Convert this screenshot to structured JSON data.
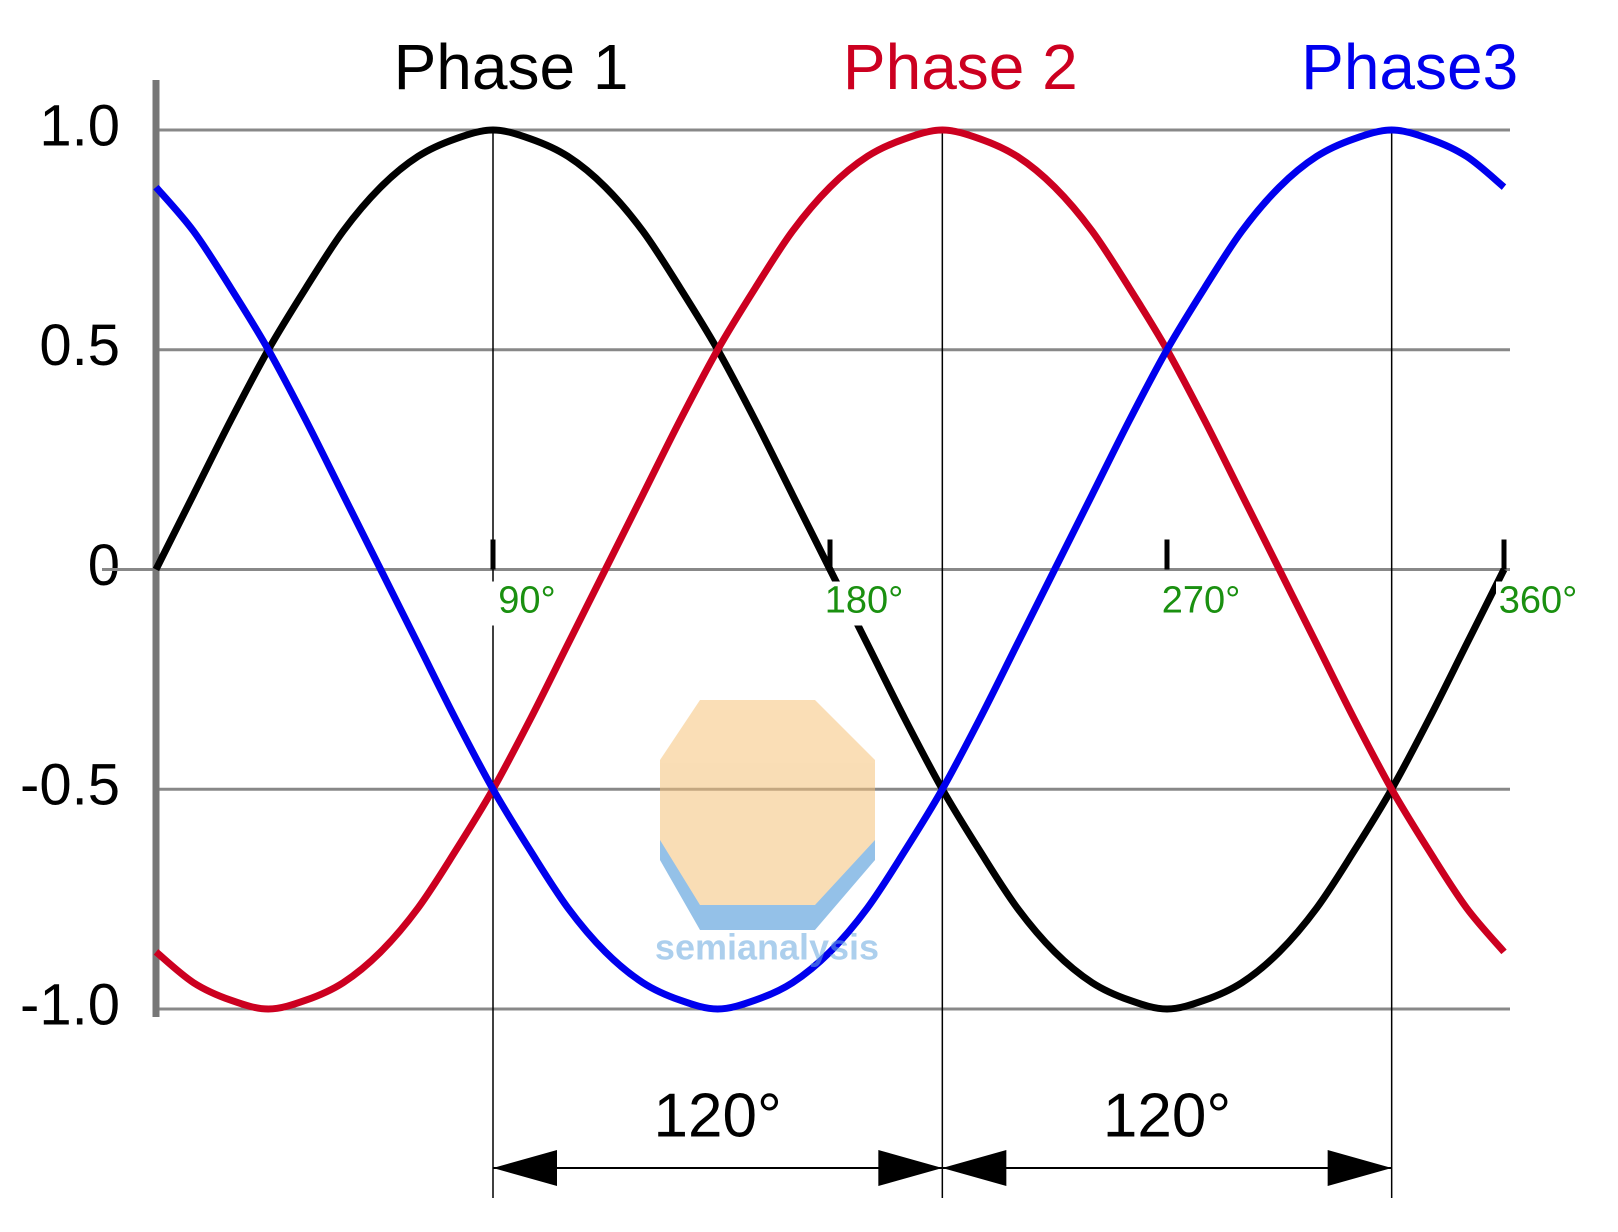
{
  "chart_data": {
    "type": "line",
    "x": [
      0,
      10,
      20,
      30,
      40,
      50,
      60,
      70,
      80,
      90,
      100,
      110,
      120,
      130,
      140,
      150,
      160,
      170,
      180,
      190,
      200,
      210,
      220,
      230,
      240,
      250,
      260,
      270,
      280,
      290,
      300,
      310,
      320,
      330,
      340,
      350,
      360
    ],
    "series": [
      {
        "name": "Phase 1",
        "color": "#000000",
        "values": [
          0,
          0.17,
          0.34,
          0.5,
          0.64,
          0.77,
          0.87,
          0.94,
          0.98,
          1,
          0.98,
          0.94,
          0.87,
          0.77,
          0.64,
          0.5,
          0.34,
          0.17,
          0,
          -0.17,
          -0.34,
          -0.5,
          -0.64,
          -0.77,
          -0.87,
          -0.94,
          -0.98,
          -1,
          -0.98,
          -0.94,
          -0.87,
          -0.77,
          -0.64,
          -0.5,
          -0.34,
          -0.17,
          0
        ]
      },
      {
        "name": "Phase 2",
        "color": "#cc0020",
        "values": [
          -0.87,
          -0.94,
          -0.98,
          -1,
          -0.98,
          -0.94,
          -0.87,
          -0.77,
          -0.64,
          -0.5,
          -0.34,
          -0.17,
          0,
          0.17,
          0.34,
          0.5,
          0.64,
          0.77,
          0.87,
          0.94,
          0.98,
          1,
          0.98,
          0.94,
          0.87,
          0.77,
          0.64,
          0.5,
          0.34,
          0.17,
          0,
          -0.17,
          -0.34,
          -0.5,
          -0.64,
          -0.77,
          -0.87
        ]
      },
      {
        "name": "Phase3",
        "color": "#0000ee",
        "values": [
          0.87,
          0.77,
          0.64,
          0.5,
          0.34,
          0.17,
          0,
          -0.17,
          -0.34,
          -0.5,
          -0.64,
          -0.77,
          -0.87,
          -0.94,
          -0.98,
          -1,
          -0.98,
          -0.94,
          -0.87,
          -0.77,
          -0.64,
          -0.5,
          -0.34,
          -0.17,
          0,
          0.17,
          0.34,
          0.5,
          0.64,
          0.77,
          0.87,
          0.94,
          0.98,
          1,
          0.98,
          0.94,
          0.87
        ]
      }
    ],
    "xlim": [
      0,
      360
    ],
    "xticks": [
      {
        "value": 90,
        "label": "90°"
      },
      {
        "value": 180,
        "label": "180°"
      },
      {
        "value": 270,
        "label": "270°"
      },
      {
        "value": 360,
        "label": "360°"
      }
    ],
    "ylim": [
      -1,
      1
    ],
    "yticks": [
      {
        "value": 1,
        "label": "1.0"
      },
      0.5,
      0,
      -0.5,
      {
        "value": -1,
        "label": "-1.0"
      }
    ],
    "grid": true,
    "annotations": [
      "120°",
      "120°"
    ],
    "watermark": "semianalysis"
  }
}
